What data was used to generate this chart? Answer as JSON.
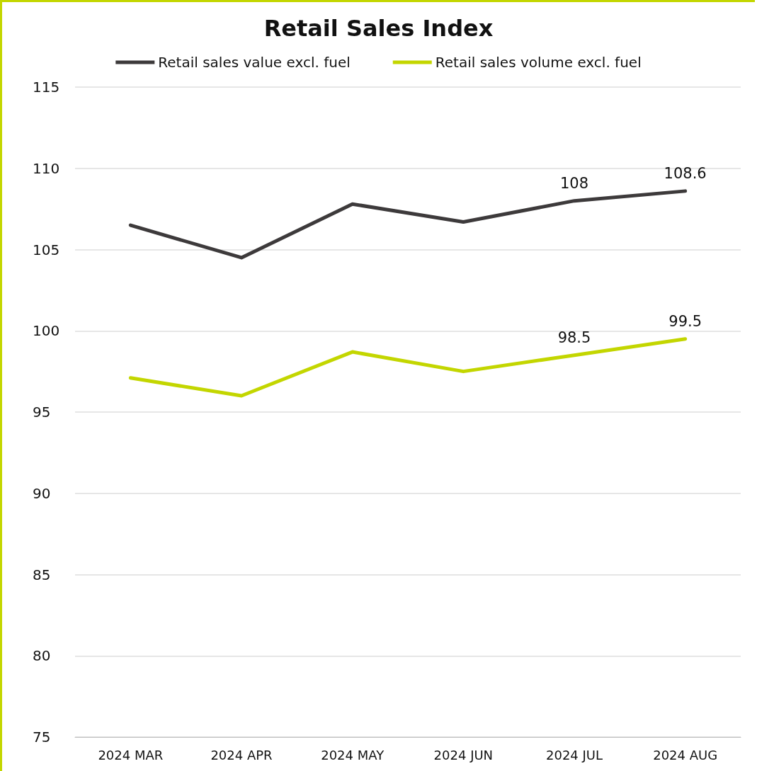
{
  "chart_data": {
    "type": "line",
    "title": "Retail Sales Index",
    "categories": [
      "2024 MAR",
      "2024 APR",
      "2024 MAY",
      "2024 JUN",
      "2024 JUL",
      "2024 AUG"
    ],
    "series": [
      {
        "name": "Retail sales value excl. fuel",
        "color": "#3d3a3b",
        "values": [
          106.5,
          104.5,
          107.8,
          106.7,
          108,
          108.6
        ],
        "value_labels": [
          null,
          null,
          null,
          null,
          "108",
          "108.6"
        ]
      },
      {
        "name": "Retail sales volume excl. fuel",
        "color": "#c3d600",
        "values": [
          97.1,
          96.0,
          98.7,
          97.5,
          98.5,
          99.5
        ],
        "value_labels": [
          null,
          null,
          null,
          null,
          "98.5",
          "99.5"
        ]
      }
    ],
    "ylim": [
      75,
      115
    ],
    "yticks": [
      75,
      80,
      85,
      90,
      95,
      100,
      105,
      110,
      115
    ],
    "grid": "y",
    "legend": "top",
    "marker": "none",
    "line_style": "solid"
  }
}
